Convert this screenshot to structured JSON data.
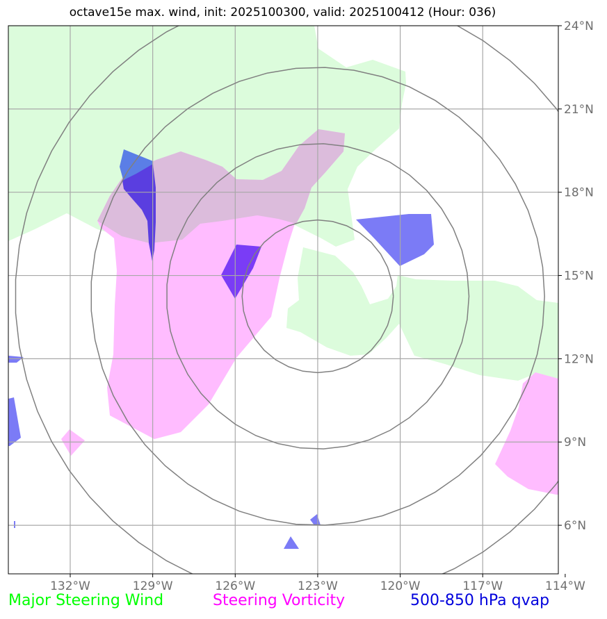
{
  "title": "octave15e max. wind, init: 2025100300, valid: 2025100412 (Hour: 036)",
  "map": {
    "lon_range": [
      -134.25,
      -114.25
    ],
    "lat_range": [
      4.25,
      24.0
    ],
    "lon_ticks": [
      {
        "value": -132,
        "label": "132°W"
      },
      {
        "value": -129,
        "label": "129°W"
      },
      {
        "value": -126,
        "label": "126°W"
      },
      {
        "value": -123,
        "label": "123°W"
      },
      {
        "value": -120,
        "label": "120°W"
      },
      {
        "value": -117,
        "label": "117°W"
      },
      {
        "value": -114,
        "label": "114°W"
      }
    ],
    "lat_ticks": [
      {
        "value": 24,
        "label": "24°N"
      },
      {
        "value": 21,
        "label": "21°N"
      },
      {
        "value": 18,
        "label": "18°N"
      },
      {
        "value": 15,
        "label": "15°N"
      },
      {
        "value": 12,
        "label": "12°N"
      },
      {
        "value": 9,
        "label": "9°N"
      },
      {
        "value": 6,
        "label": "6°N"
      }
    ],
    "range_rings": {
      "center": [
        -123.0,
        14.25
      ],
      "radii_deg": [
        2.75,
        5.5,
        8.25,
        11.0
      ]
    },
    "colors": {
      "steering_wind": "#dcfcdc",
      "vorticity": "#ffbcff",
      "overlap": "#dcbcdc",
      "qvap": "#7b7bf6",
      "qvap_dark": "#5a3ee0",
      "qvap_mid": "#5b7ee6",
      "qvap_core": "#7a3cf6",
      "rings": "#808080",
      "grid": "#a8a8a8"
    }
  },
  "legend": {
    "wind_label": "Major Steering Wind",
    "wind_color": "#00ff00",
    "vorticity_label": "Steering Vorticity",
    "vorticity_color": "#ff00ff",
    "qvap_label": "500-850 hPa qvap",
    "qvap_color": "#0000dd"
  }
}
